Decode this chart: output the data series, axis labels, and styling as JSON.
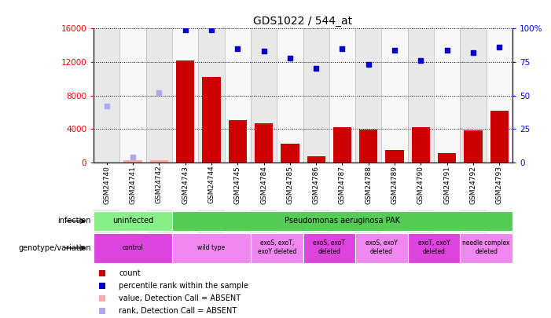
{
  "title": "GDS1022 / 544_at",
  "samples": [
    "GSM24740",
    "GSM24741",
    "GSM24742",
    "GSM24743",
    "GSM24744",
    "GSM24745",
    "GSM24784",
    "GSM24785",
    "GSM24786",
    "GSM24787",
    "GSM24788",
    "GSM24789",
    "GSM24790",
    "GSM24791",
    "GSM24792",
    "GSM24793"
  ],
  "count_values_full": [
    0,
    200,
    200,
    12200,
    10200,
    5000,
    4700,
    2200,
    700,
    4200,
    3900,
    1500,
    4200,
    1100,
    3800,
    6200
  ],
  "percentile_full": [
    42,
    4,
    52,
    99,
    99,
    85,
    83,
    78,
    70,
    85,
    73,
    84,
    76,
    84,
    82,
    86
  ],
  "is_absent": [
    true,
    true,
    true,
    false,
    false,
    false,
    false,
    false,
    false,
    false,
    false,
    false,
    false,
    false,
    false,
    false
  ],
  "bar_color_present": "#cc0000",
  "bar_color_absent": "#ffaaaa",
  "dot_color_present": "#0000cc",
  "dot_color_absent": "#aaaaee",
  "ylim_left": [
    0,
    16000
  ],
  "ylim_right": [
    0,
    100
  ],
  "yticks_left": [
    0,
    4000,
    8000,
    12000,
    16000
  ],
  "yticks_right": [
    0,
    25,
    50,
    75,
    100
  ],
  "infection_labels": [
    {
      "text": "uninfected",
      "start": 0,
      "end": 2,
      "color": "#88ee88"
    },
    {
      "text": "Pseudomonas aeruginosa PAK",
      "start": 3,
      "end": 15,
      "color": "#55cc55"
    }
  ],
  "genotype_labels": [
    {
      "text": "control",
      "start": 0,
      "end": 2,
      "color": "#dd44dd"
    },
    {
      "text": "wild type",
      "start": 3,
      "end": 5,
      "color": "#ee88ee"
    },
    {
      "text": "exoS, exoT,\nexoY deleted",
      "start": 6,
      "end": 7,
      "color": "#ee88ee"
    },
    {
      "text": "exoS, exoT\ndeleted",
      "start": 8,
      "end": 9,
      "color": "#dd44dd"
    },
    {
      "text": "exoS, exoY\ndeleted",
      "start": 10,
      "end": 11,
      "color": "#ee88ee"
    },
    {
      "text": "exoT, exoY\ndeleted",
      "start": 12,
      "end": 13,
      "color": "#dd44dd"
    },
    {
      "text": "needle complex\ndeleted",
      "start": 14,
      "end": 15,
      "color": "#ee88ee"
    }
  ],
  "legend_items": [
    {
      "label": "count",
      "color": "#cc0000"
    },
    {
      "label": "percentile rank within the sample",
      "color": "#0000cc"
    },
    {
      "label": "value, Detection Call = ABSENT",
      "color": "#ffaaaa"
    },
    {
      "label": "rank, Detection Call = ABSENT",
      "color": "#aaaaee"
    }
  ]
}
